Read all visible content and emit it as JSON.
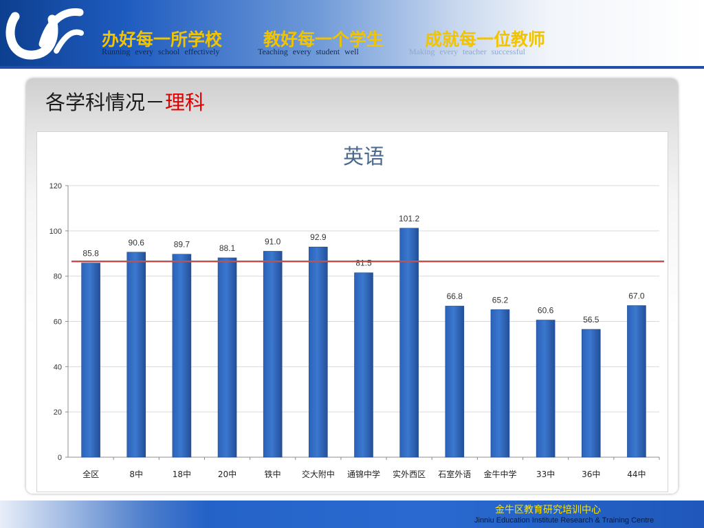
{
  "header": {
    "slogans_cn": [
      "办好每一所学校",
      "教好每一个学生",
      "成就每一位教师"
    ],
    "slogans_en": [
      "Running   every  school  effectively",
      "Teaching   every   student   well",
      "Making  every  teacher  successful"
    ]
  },
  "slide": {
    "title_prefix": "各学科情况－",
    "title_highlight": "理科"
  },
  "chart_data": {
    "type": "bar",
    "title": "英语",
    "categories": [
      "全区",
      "8中",
      "18中",
      "20中",
      "铁中",
      "交大附中",
      "通锦中学",
      "实外西区",
      "石室外语",
      "金牛中学",
      "33中",
      "36中",
      "44中"
    ],
    "values": [
      85.8,
      90.6,
      89.7,
      88.1,
      91.0,
      92.9,
      81.5,
      101.2,
      66.8,
      65.2,
      60.6,
      56.5,
      67.0
    ],
    "value_labels": [
      "85.8",
      "90.6",
      "89.7",
      "88.1",
      "91.0",
      "92.9",
      "81.5",
      "101.2",
      "66.8",
      "65.2",
      "60.6",
      "56.5",
      "67.0"
    ],
    "reference_line": 86.5,
    "ylim": [
      0,
      120
    ],
    "yticks": [
      0,
      20,
      40,
      60,
      80,
      100,
      120
    ],
    "grid": true,
    "bar_color": "#3b78cf",
    "reference_line_color": "#c0504d"
  },
  "footer": {
    "org_cn": "金牛区教育研究培训中心",
    "org_en": "Jinniu Education Institute Research & Training Centre"
  }
}
